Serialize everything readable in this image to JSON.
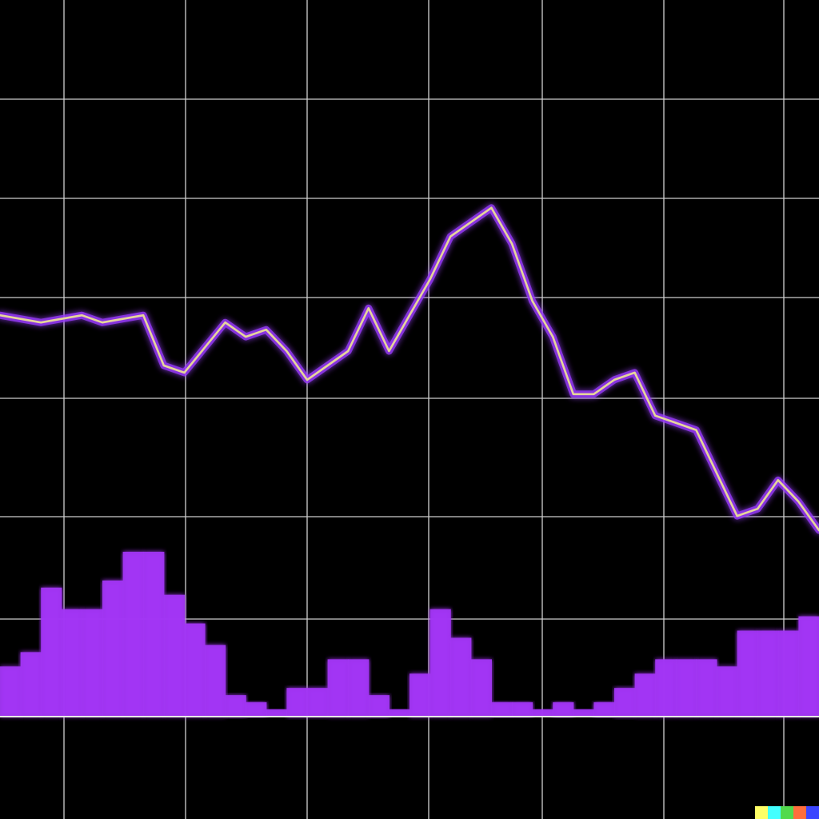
{
  "chart_data": {
    "type": "line",
    "title": "",
    "xlabel": "",
    "ylabel": "",
    "grid": true,
    "legend": "none",
    "xlim": [
      0,
      40
    ],
    "ylim": [
      0,
      100
    ],
    "series": [
      {
        "type": "line",
        "color": "#e6d69a",
        "glow_color": "#9b3cff",
        "x": [
          0,
          2,
          4,
          5,
          7,
          8,
          9,
          11,
          12,
          13,
          14,
          15,
          16,
          17,
          18,
          19,
          20,
          21,
          22,
          24,
          25,
          26,
          27,
          28,
          29,
          30,
          31,
          32,
          33,
          34,
          35,
          36,
          37,
          38,
          39,
          40
        ],
        "values": [
          56,
          55,
          56,
          55,
          56,
          49,
          48,
          55,
          53,
          54,
          51,
          47,
          49,
          51,
          57,
          51,
          56,
          61,
          67,
          71,
          66,
          58,
          53,
          45,
          45,
          47,
          48,
          42,
          41,
          40,
          34,
          28,
          29,
          33,
          30,
          26
        ]
      },
      {
        "type": "bar",
        "color": "#a335f5",
        "x": [
          0,
          1,
          2,
          3,
          4,
          5,
          6,
          7,
          8,
          9,
          10,
          11,
          12,
          13,
          14,
          15,
          16,
          17,
          18,
          19,
          20,
          21,
          22,
          23,
          24,
          25,
          26,
          27,
          28,
          29,
          30,
          31,
          32,
          33,
          34,
          35,
          36,
          37,
          38,
          39
        ],
        "values": [
          7,
          9,
          18,
          15,
          15,
          19,
          23,
          23,
          17,
          13,
          10,
          3,
          2,
          1,
          4,
          4,
          8,
          8,
          3,
          1,
          6,
          15,
          11,
          8,
          2,
          2,
          1,
          2,
          1,
          2,
          4,
          6,
          8,
          8,
          8,
          7,
          12,
          12,
          12,
          14
        ]
      }
    ]
  },
  "colors": {
    "background": "#000000",
    "grid": "#c9c9c9",
    "baseline": "#e8e8e8"
  },
  "watermark": {
    "colors": [
      "#ffff66",
      "#42ffff",
      "#51da4c",
      "#ff6e3c",
      "#3c46ff"
    ]
  }
}
